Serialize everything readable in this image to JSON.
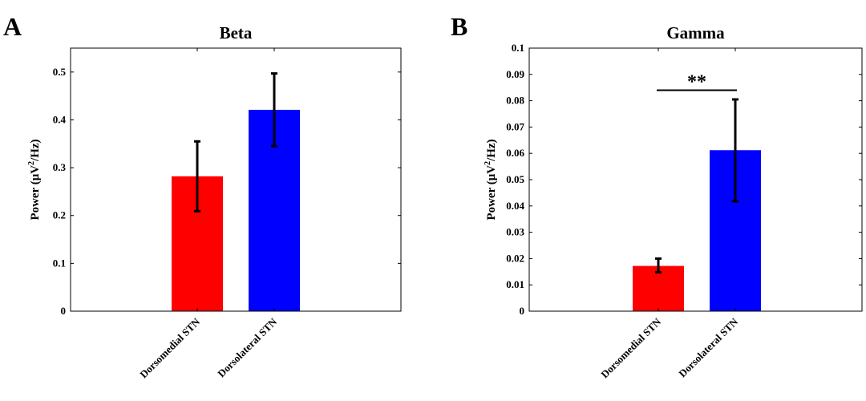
{
  "panels": {
    "a": {
      "letter": "A"
    },
    "b": {
      "letter": "B",
      "significance": "**"
    }
  },
  "chart_data": [
    {
      "type": "bar",
      "title": "Beta",
      "xlabel": "",
      "ylabel_base": "Power (μV",
      "ylabel_sup": "2",
      "ylabel_tail": "/Hz)",
      "categories": [
        "Dorsomedial STN",
        "Dorsolateral STN"
      ],
      "values": [
        0.282,
        0.421
      ],
      "error_low": [
        0.209,
        0.345
      ],
      "error_high": [
        0.355,
        0.497
      ],
      "colors": [
        "#ff0000",
        "#0000ff"
      ],
      "ylim": [
        0,
        0.55
      ],
      "yticks": [
        0,
        0.1,
        0.2,
        0.3,
        0.4,
        0.5
      ],
      "ytick_labels": [
        "0",
        "0.1",
        "0.2",
        "0.3",
        "0.4",
        "0.5"
      ],
      "grid": false,
      "legend": "none"
    },
    {
      "type": "bar",
      "title": "Gamma",
      "xlabel": "",
      "ylabel_base": "Power (μV",
      "ylabel_sup": "2",
      "ylabel_tail": "/Hz)",
      "categories": [
        "Dorsomedial STN",
        "Dorsolateral STN"
      ],
      "values": [
        0.0172,
        0.0612
      ],
      "error_low": [
        0.0148,
        0.0418
      ],
      "error_high": [
        0.02,
        0.0805
      ],
      "colors": [
        "#ff0000",
        "#0000ff"
      ],
      "ylim": [
        0,
        0.1
      ],
      "yticks": [
        0,
        0.01,
        0.02,
        0.03,
        0.04,
        0.05,
        0.06,
        0.07,
        0.08,
        0.09,
        0.1
      ],
      "ytick_labels": [
        "0",
        "0.01",
        "0.02",
        "0.03",
        "0.04",
        "0.05",
        "0.06",
        "0.07",
        "0.08",
        "0.09",
        "0.1"
      ],
      "significance": {
        "label": "**",
        "y": 0.084,
        "between": [
          0,
          1
        ]
      },
      "grid": false,
      "legend": "none"
    }
  ]
}
